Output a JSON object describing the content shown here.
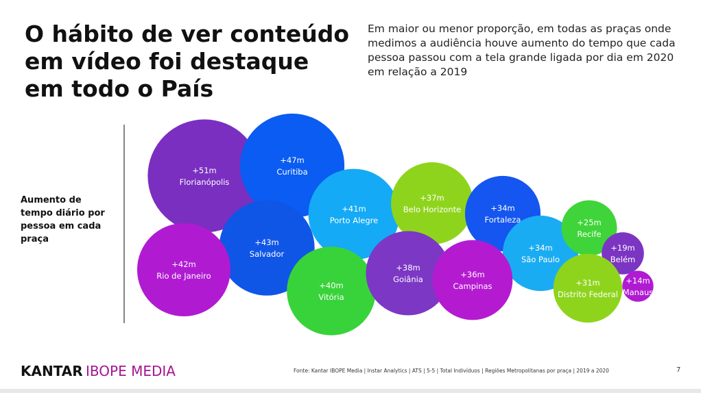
{
  "chart_data": {
    "type": "bubble",
    "title": "O hábito de ver conteúdo em vídeo foi destaque em todo o País",
    "subtitle": "Em maior ou menor proporção, em todas as praças onde medimos a audiência houve aumento do tempo que cada pessoa passou com a tela grande ligada por dia em 2020 em relação a 2019",
    "y_label": "Aumento de tempo diário por pessoa em cada praça",
    "categories": [
      "Florianópolis",
      "Curitiba",
      "Porto Alegre",
      "Belo Horizonte",
      "Fortaleza",
      "São Paulo",
      "Recife",
      "Belém",
      "Salvador",
      "Rio de Janeiro",
      "Vitória",
      "Goiânia",
      "Campinas",
      "Distrito Federal",
      "Manaus"
    ],
    "values": [
      51,
      47,
      41,
      37,
      34,
      34,
      25,
      19,
      43,
      42,
      40,
      38,
      36,
      31,
      14
    ],
    "value_labels": [
      "+51m",
      "+47m",
      "+41m",
      "+37m",
      "+34m",
      "+34m",
      "+25m",
      "+19m",
      "+43m",
      "+42m",
      "+40m",
      "+38m",
      "+36m",
      "+31m",
      "+14m"
    ],
    "colors": [
      "#7a2fc0",
      "#0a5cf2",
      "#14aaf5",
      "#8fd41c",
      "#1556f0",
      "#1aacf2",
      "#3fd43a",
      "#7b35c2",
      "#1056e6",
      "#b01bd2",
      "#38d33a",
      "#7c37c4",
      "#b41bd0",
      "#8fd41c",
      "#b01bd2"
    ]
  },
  "footer": {
    "brand_1": "KANTAR",
    "brand_2": "IBOPE MEDIA",
    "source": "Fonte: Kantar IBOPE Media | Instar Analytics | ATS | 5-5 | Total Indivíduos | Regiões Metropolitanas por praça | 2019 a 2020",
    "page": 7
  }
}
